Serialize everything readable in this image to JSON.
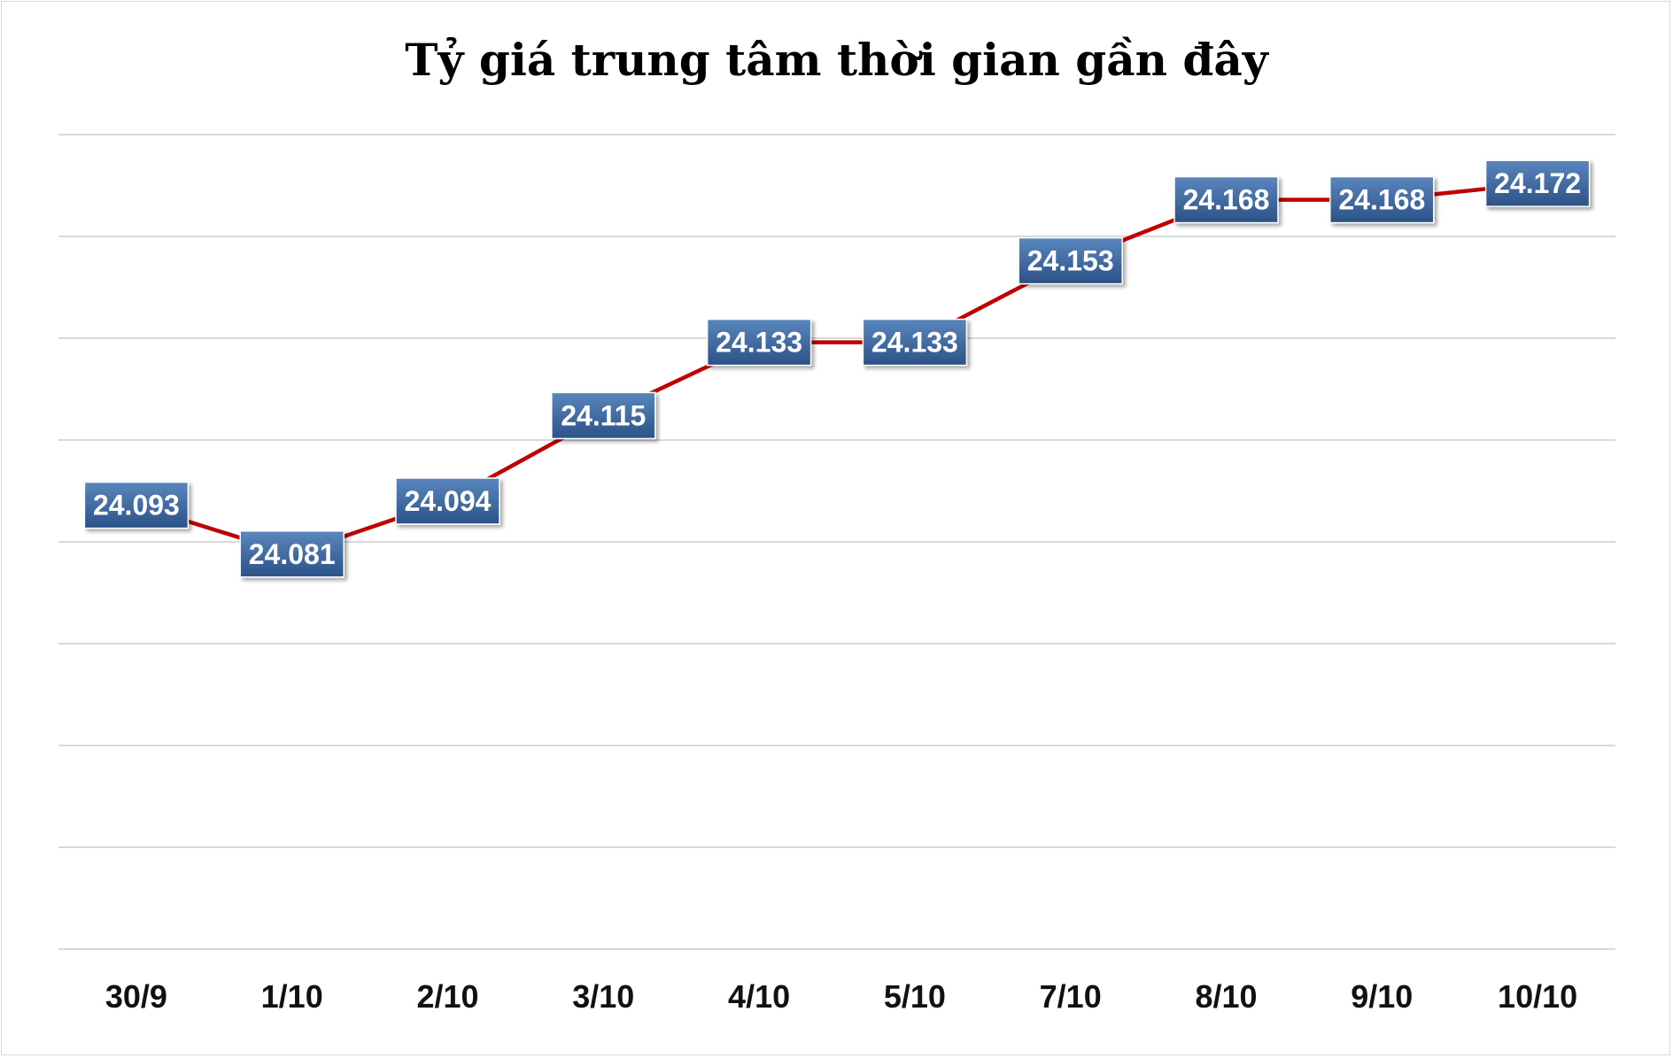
{
  "chart_data": {
    "type": "line",
    "title": "Tỷ giá trung tâm thời gian gần đây",
    "xlabel": "",
    "ylabel": "",
    "categories": [
      "30/9",
      "1/10",
      "2/10",
      "3/10",
      "4/10",
      "5/10",
      "7/10",
      "8/10",
      "9/10",
      "10/10"
    ],
    "series": [
      {
        "values": [
          24093,
          24081,
          24094,
          24115,
          24133,
          24133,
          24153,
          24168,
          24168,
          24172
        ],
        "labels": [
          "24.093",
          "24.081",
          "24.094",
          "24.115",
          "24.133",
          "24.133",
          "24.153",
          "24.168",
          "24.168",
          "24.172"
        ]
      }
    ],
    "ylim": [
      23984,
      24184
    ],
    "grid": true,
    "legend": "none",
    "colors": {
      "line": "#c00000",
      "label_fill_top": "#5a86be",
      "label_fill_bottom": "#2b5287",
      "gridline": "#d9d9d9"
    }
  }
}
